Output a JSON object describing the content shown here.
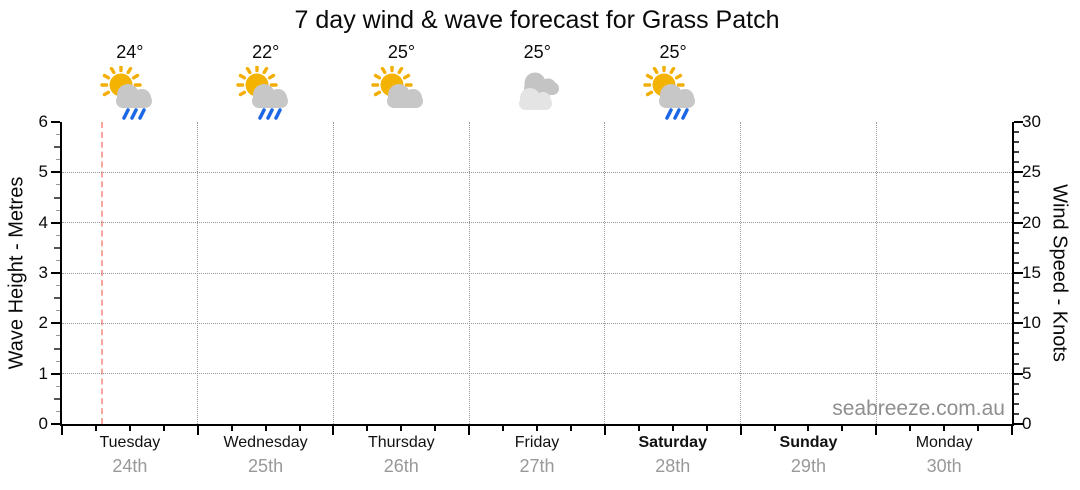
{
  "title": "7 day wind & wave forecast for Grass Patch",
  "watermark": "seabreeze.com.au",
  "axes": {
    "wave": {
      "label": "Wave Height - Metres",
      "ticks": [
        "6",
        "5",
        "4",
        "3",
        "2",
        "1",
        "0"
      ]
    },
    "wind": {
      "label": "Wind Speed - Knots",
      "ticks": [
        "30",
        "25",
        "20",
        "15",
        "10",
        "5",
        "0"
      ]
    }
  },
  "days": [
    {
      "name": "Tuesday",
      "date": "24th"
    },
    {
      "name": "Wednesday",
      "date": "25th"
    },
    {
      "name": "Thursday",
      "date": "26th"
    },
    {
      "name": "Friday",
      "date": "27th"
    },
    {
      "name": "Saturday",
      "date": "28th"
    },
    {
      "name": "Sunday",
      "date": "29th"
    },
    {
      "name": "Monday",
      "date": "30th"
    }
  ],
  "forecast": [
    {
      "day": "Tuesday",
      "temp": "24°",
      "icon": "sun-cloud-rain"
    },
    {
      "day": "Wednesday",
      "temp": "22°",
      "icon": "sun-cloud-rain"
    },
    {
      "day": "Thursday",
      "temp": "25°",
      "icon": "sun-cloud"
    },
    {
      "day": "Friday",
      "temp": "25°",
      "icon": "cloudy"
    },
    {
      "day": "Saturday",
      "temp": "25°",
      "icon": "sun-cloud-rain"
    }
  ],
  "colors": {
    "sun": "#F5B301",
    "cloud": "#C7C7C7",
    "cloud_light": "#E4E4E4",
    "rain": "#1C66E8",
    "now_line": "#F7A6A0",
    "grid": "#999999",
    "date_text": "#999999",
    "watermark_text": "#8F8F8F"
  },
  "chart_data": {
    "type": "line",
    "title": "7 day wind & wave forecast for Grass Patch",
    "x_categories": [
      "Tuesday 24th",
      "Wednesday 25th",
      "Thursday 26th",
      "Friday 27th",
      "Saturday 28th",
      "Sunday 29th",
      "Monday 30th"
    ],
    "y_left": {
      "label": "Wave Height - Metres",
      "range": [
        0,
        6
      ],
      "ticks": [
        0,
        1,
        2,
        3,
        4,
        5,
        6
      ]
    },
    "y_right": {
      "label": "Wind Speed - Knots",
      "range": [
        0,
        30
      ],
      "ticks": [
        0,
        5,
        10,
        15,
        20,
        25,
        30
      ]
    },
    "series": [],
    "grid": true,
    "legend": "none",
    "annotations": {
      "temperatures_c": [
        24,
        22,
        25,
        25,
        25
      ],
      "condition_icons": [
        "sun-cloud-rain",
        "sun-cloud-rain",
        "sun-cloud",
        "cloudy",
        "sun-cloud-rain"
      ],
      "now_marker": "dashed vertical line early Tuesday"
    }
  }
}
